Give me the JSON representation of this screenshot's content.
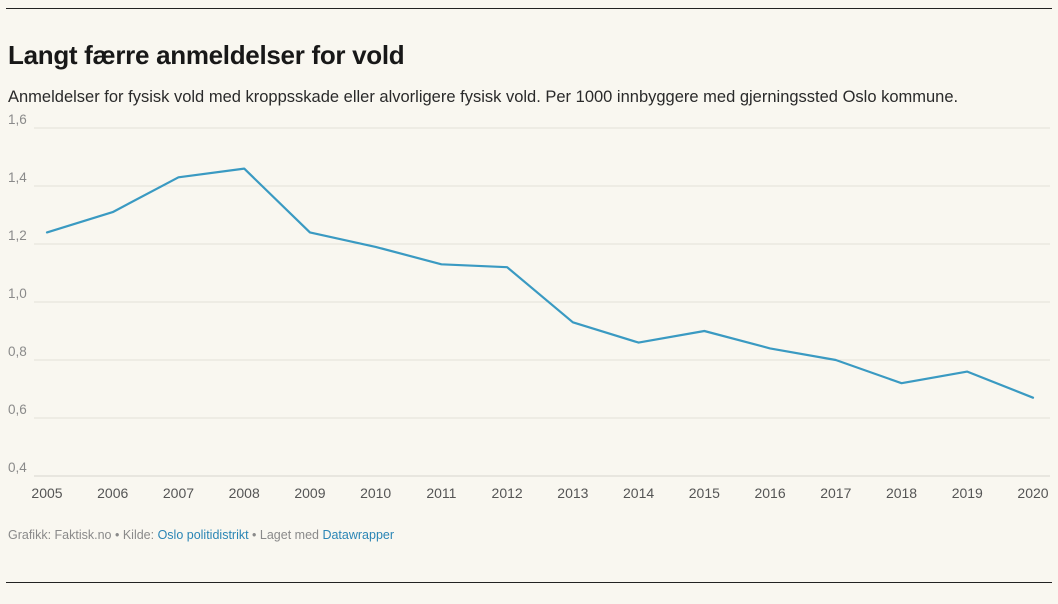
{
  "title": "Langt færre anmeldelser for vold",
  "subtitle": "Anmeldelser for fysisk vold med kroppsskade eller alvorligere fysisk vold. Per 1000 innbyggere med gjerningssted Oslo kommune.",
  "footer": {
    "graphic_label": "Grafikk: Faktisk.no",
    "separator1": " • ",
    "source_label": "Kilde: ",
    "source_link": "Oslo politidistrikt",
    "separator2": " • ",
    "made_with_label": "Laget med ",
    "made_with_link": "Datawrapper"
  },
  "colors": {
    "line": "#3a9ac2",
    "background": "#f9f7f0",
    "link": "#2a85b5"
  },
  "chart_data": {
    "type": "line",
    "title": "Langt færre anmeldelser for vold",
    "subtitle": "Anmeldelser for fysisk vold med kroppsskade eller alvorligere fysisk vold. Per 1000 innbyggere med gjerningssted Oslo kommune.",
    "x": [
      "2005",
      "2006",
      "2007",
      "2008",
      "2009",
      "2010",
      "2011",
      "2012",
      "2013",
      "2014",
      "2015",
      "2016",
      "2017",
      "2018",
      "2019",
      "2020"
    ],
    "series": [
      {
        "values": [
          1.24,
          1.31,
          1.43,
          1.46,
          1.24,
          1.19,
          1.13,
          1.12,
          0.93,
          0.86,
          0.9,
          0.84,
          0.8,
          0.72,
          0.76,
          0.67
        ]
      }
    ],
    "ylim": [
      0.4,
      1.6
    ],
    "yticks": [
      0.4,
      0.6,
      0.8,
      1.0,
      1.2,
      1.4,
      1.6
    ],
    "ytick_labels": [
      "0,4",
      "0,6",
      "0,8",
      "1,0",
      "1,2",
      "1,4",
      "1,6"
    ],
    "grid": true,
    "legend": "none"
  }
}
